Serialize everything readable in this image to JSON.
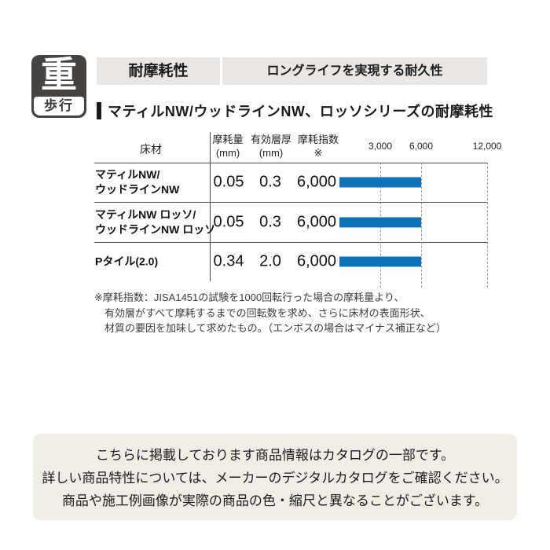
{
  "badge": {
    "char": "重",
    "label": "歩行"
  },
  "header_bar": {
    "left_label": "耐摩耗性",
    "right_label": "ロングライフを実現する耐久性"
  },
  "section": {
    "title": "マティルNW/ウッドラインNW、ロッソシリーズの耐摩耗性"
  },
  "table": {
    "headers": {
      "material": "床材",
      "wear_l1": "摩耗量",
      "wear_l2": "(mm)",
      "layer_l1": "有効層厚",
      "layer_l2": "(mm)",
      "index_l1": "摩耗指数",
      "index_l2": "※"
    },
    "axis": {
      "t3000": "3,000",
      "t6000": "6,000",
      "t12000": "12,000"
    },
    "rows": [
      {
        "name_l1": "マティルNW/",
        "name_l2": "ウッドラインNW",
        "wear": "0.05",
        "layer": "0.3",
        "index": "6,000"
      },
      {
        "name_l1": "マティルNW ロッソ/",
        "name_l2": "ウッドラインNW ロッソ",
        "wear": "0.05",
        "layer": "0.3",
        "index": "6,000"
      },
      {
        "name_l1": "Pタイル(2.0)",
        "name_l2": "",
        "wear": "0.34",
        "layer": "2.0",
        "index": "6,000"
      }
    ]
  },
  "footnote": {
    "line1": "※摩耗指数：JISA1451の試験を1000回転行った場合の摩耗量より、",
    "line2": "有効層がすべて摩耗するまでの回転数を求め、さらに床材の表面形状、",
    "line3": "材質の要因を加味して求めたもの。（エンボスの場合はマイナス補正など）"
  },
  "notice": {
    "line1": "こちらに掲載しております商品情報はカタログの一部です。",
    "line2": "詳しい商品特性については、メーカーのデジタルカタログをご確認ください。",
    "line3": "商品や施工例画像が実際の商品の色・縮尺と異なることがございます。"
  },
  "colors": {
    "bar_blue": "#0e72b9",
    "header_bg": "#e9e6e3",
    "notice_bg": "#f0ede7",
    "badge_bg": "#474340",
    "gridline_gray": "#9a9a9a"
  },
  "chart_data": {
    "type": "bar",
    "orientation": "horizontal",
    "title": "マティルNW/ウッドラインNW、ロッソシリーズの耐摩耗性",
    "categories": [
      "マティルNW/ウッドラインNW",
      "マティルNW ロッソ/ウッドラインNW ロッソ",
      "Pタイル(2.0)"
    ],
    "series": [
      {
        "name": "摩耗指数",
        "values": [
          6000,
          6000,
          6000
        ]
      }
    ],
    "table_columns": [
      "床材",
      "摩耗量(mm)",
      "有効層厚(mm)",
      "摩耗指数※"
    ],
    "table_rows": [
      [
        "マティルNW/ウッドラインNW",
        0.05,
        0.3,
        6000
      ],
      [
        "マティルNW ロッソ/ウッドラインNW ロッソ",
        0.05,
        0.3,
        6000
      ],
      [
        "Pタイル(2.0)",
        0.34,
        2.0,
        6000
      ]
    ],
    "x_ticks": [
      3000,
      6000,
      12000
    ],
    "xlim": [
      0,
      12000
    ],
    "grid": "dotted-vertical",
    "legend": "none",
    "bar_color": "#0e72b9"
  }
}
